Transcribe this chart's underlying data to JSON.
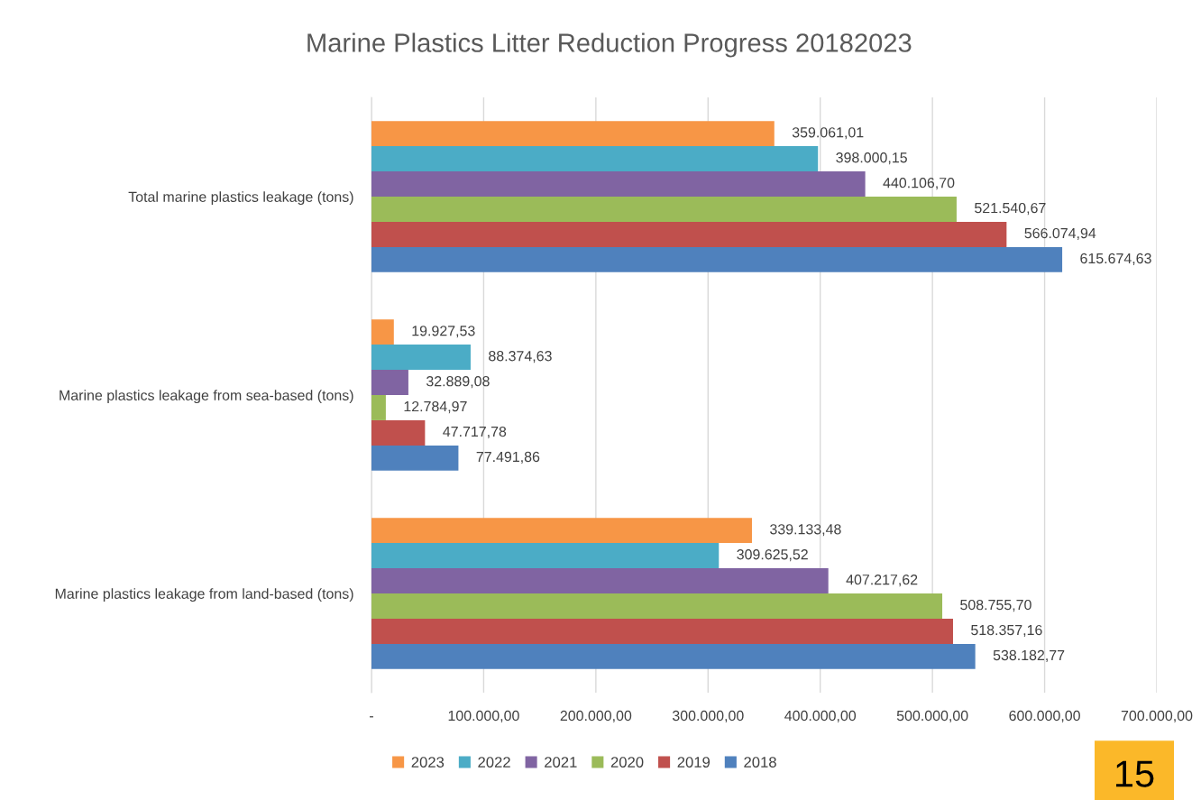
{
  "chart_data": {
    "type": "bar",
    "orientation": "horizontal",
    "title": "Marine Plastics Litter Reduction Progress 20182023",
    "categories": [
      "Total marine plastics leakage (tons)",
      "Marine plastics leakage from sea-based (tons)",
      "Marine plastics leakage from land-based (tons)"
    ],
    "series": [
      {
        "name": "2023",
        "color": "#f79646",
        "values": [
          359061.01,
          19927.53,
          339133.48
        ],
        "value_labels": [
          "359.061,01",
          "19.927,53",
          "339.133,48"
        ]
      },
      {
        "name": "2022",
        "color": "#4bacc6",
        "values": [
          398000.15,
          88374.63,
          309625.52
        ],
        "value_labels": [
          "398.000,15",
          "88.374,63",
          "309.625,52"
        ]
      },
      {
        "name": "2021",
        "color": "#8064a2",
        "values": [
          440106.7,
          32889.08,
          407217.62
        ],
        "value_labels": [
          "440.106,70",
          "32.889,08",
          "407.217,62"
        ]
      },
      {
        "name": "2020",
        "color": "#9bbb59",
        "values": [
          521540.67,
          12784.97,
          508755.7
        ],
        "value_labels": [
          "521.540,67",
          "12.784,97",
          "508.755,70"
        ]
      },
      {
        "name": "2019",
        "color": "#c0504d",
        "values": [
          566074.94,
          47717.78,
          518357.16
        ],
        "value_labels": [
          "566.074,94",
          "47.717,78",
          "518.357,16"
        ]
      },
      {
        "name": "2018",
        "color": "#4f81bd",
        "values": [
          615674.63,
          77491.86,
          538182.77
        ],
        "value_labels": [
          "615.674,63",
          "77.491,86",
          "538.182,77"
        ]
      }
    ],
    "xlim": [
      0,
      700000
    ],
    "xticks": [
      {
        "value": 0,
        "label": "-"
      },
      {
        "value": 100000,
        "label": "100.000,00"
      },
      {
        "value": 200000,
        "label": "200.000,00"
      },
      {
        "value": 300000,
        "label": "300.000,00"
      },
      {
        "value": 400000,
        "label": "400.000,00"
      },
      {
        "value": 500000,
        "label": "500.000,00"
      },
      {
        "value": 600000,
        "label": "600.000,00"
      },
      {
        "value": 700000,
        "label": "700.000,00"
      }
    ],
    "grid": "x",
    "legend": "bottom",
    "annotations": [
      "15"
    ]
  }
}
